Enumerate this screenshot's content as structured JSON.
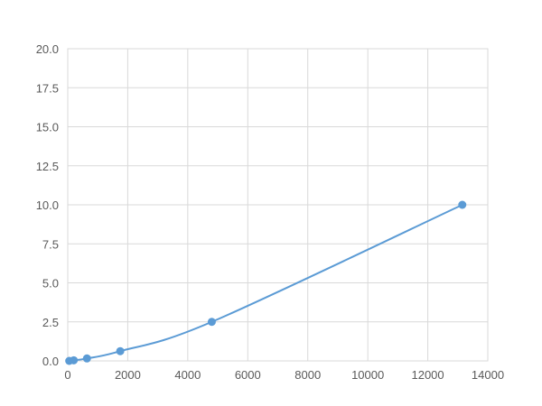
{
  "chart_data": {
    "type": "scatter",
    "line": "smooth",
    "title": "",
    "xlabel": "",
    "ylabel": "",
    "xlim": [
      0,
      14000
    ],
    "ylim": [
      0,
      20
    ],
    "xticks": [
      "0",
      "2000",
      "4000",
      "6000",
      "8000",
      "10000",
      "12000",
      "14000"
    ],
    "yticks": [
      "0.0",
      "2.5",
      "5.0",
      "7.5",
      "10.0",
      "12.5",
      "15.0",
      "17.5",
      "20.0"
    ],
    "grid": true,
    "color": "#5b9bd5",
    "series": [
      {
        "x": [
          50,
          200,
          640,
          1750,
          4800,
          13150
        ],
        "y": [
          0,
          0.039,
          0.156,
          0.625,
          2.5,
          10
        ]
      }
    ]
  }
}
